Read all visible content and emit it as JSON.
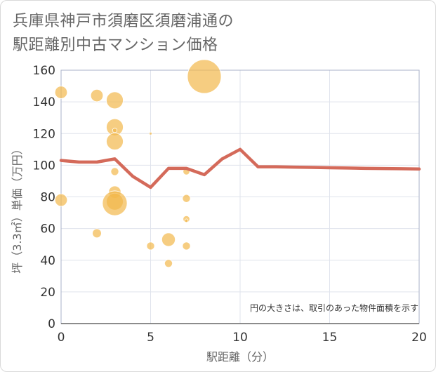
{
  "title": {
    "line1": "兵庫県神戸市須磨区須磨浦通の",
    "line2": "駅距離別中古マンション価格"
  },
  "colors": {
    "bubble": "#f2b84b",
    "line": "#d46a5a",
    "grid": "#dfe3ec",
    "plot_border": "#aab2c8",
    "text": "#333333",
    "axis_title": "#666666"
  },
  "chart_data": {
    "type": "scatter",
    "xlabel": "駅距離（分）",
    "ylabel": "坪（3.3㎡）単価（万円）",
    "xlim": [
      0,
      20
    ],
    "ylim": [
      0,
      160
    ],
    "x_ticks": [
      "0",
      "5",
      "10",
      "15",
      "20"
    ],
    "y_ticks": [
      "0",
      "20",
      "40",
      "60",
      "80",
      "100",
      "120",
      "140",
      "160"
    ],
    "grid": true,
    "note": "円の大きさは、取引のあった物件面積を示す",
    "bubbles": [
      {
        "x": 0,
        "y": 146,
        "size": 2.2
      },
      {
        "x": 0,
        "y": 78,
        "size": 2.2
      },
      {
        "x": 2,
        "y": 144,
        "size": 2.2
      },
      {
        "x": 2,
        "y": 57,
        "size": 1.6
      },
      {
        "x": 3,
        "y": 141,
        "size": 3.0
      },
      {
        "x": 3,
        "y": 124,
        "size": 3.0
      },
      {
        "x": 3,
        "y": 122,
        "size": 0.8
      },
      {
        "x": 3,
        "y": 115,
        "size": 3.0
      },
      {
        "x": 3,
        "y": 96,
        "size": 1.4
      },
      {
        "x": 3,
        "y": 83,
        "size": 2.2
      },
      {
        "x": 3,
        "y": 77,
        "size": 3.0
      },
      {
        "x": 3,
        "y": 76,
        "size": 4.4
      },
      {
        "x": 5,
        "y": 120,
        "size": 0.5
      },
      {
        "x": 5,
        "y": 49,
        "size": 1.4
      },
      {
        "x": 6,
        "y": 53,
        "size": 2.4
      },
      {
        "x": 6,
        "y": 38,
        "size": 1.4
      },
      {
        "x": 7,
        "y": 96,
        "size": 1.2
      },
      {
        "x": 7,
        "y": 79,
        "size": 1.4
      },
      {
        "x": 7,
        "y": 66,
        "size": 1.2
      },
      {
        "x": 7,
        "y": 65,
        "size": 0.6
      },
      {
        "x": 7,
        "y": 49,
        "size": 1.4
      },
      {
        "x": 8,
        "y": 156,
        "size": 6.0
      }
    ],
    "line": {
      "x": [
        0,
        1,
        2,
        3,
        4,
        5,
        6,
        7,
        8,
        9,
        10,
        11,
        12,
        13,
        14,
        15,
        16,
        17,
        18,
        19,
        20
      ],
      "y": [
        103,
        102,
        102,
        104,
        93,
        86,
        98,
        98,
        94,
        104,
        110,
        99,
        99,
        98.8,
        98.6,
        98.4,
        98.2,
        98,
        97.9,
        97.8,
        97.6
      ]
    }
  }
}
